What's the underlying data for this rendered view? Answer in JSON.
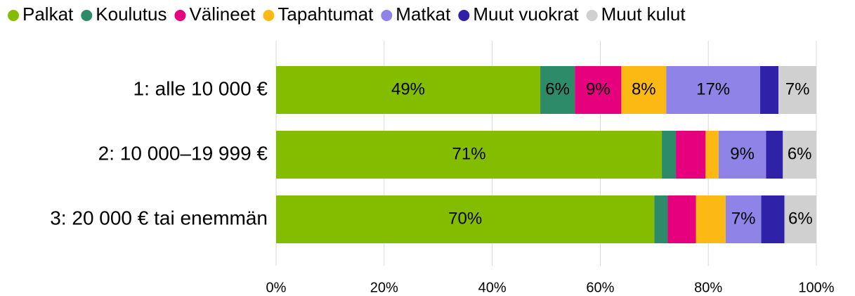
{
  "chart_data": {
    "type": "stacked_barh",
    "categories": [
      "1: alle 10 000 €",
      "2: 10 000–19 999 €",
      "3: 20 000 € tai enemmän"
    ],
    "series": [
      {
        "name": "Palkat",
        "color": "#84bd00",
        "values": [
          48.9,
          71.4,
          70.0
        ],
        "value_labels": [
          "49%",
          "71%",
          "70%"
        ]
      },
      {
        "name": "Koulutus",
        "color": "#2e8b6a",
        "values": [
          6.4,
          2.6,
          2.5
        ],
        "value_labels": [
          "6%",
          null,
          null
        ]
      },
      {
        "name": "Välineet",
        "color": "#e6007e",
        "values": [
          8.6,
          5.5,
          5.2
        ],
        "value_labels": [
          "9%",
          null,
          null
        ]
      },
      {
        "name": "Tapahtumat",
        "color": "#fdb913",
        "values": [
          8.3,
          2.4,
          5.5
        ],
        "value_labels": [
          "8%",
          null,
          null
        ]
      },
      {
        "name": "Matkat",
        "color": "#8f83e8",
        "values": [
          17.4,
          8.8,
          6.6
        ],
        "value_labels": [
          "17%",
          "9%",
          "7%"
        ]
      },
      {
        "name": "Muut vuokrat",
        "color": "#3022a8",
        "values": [
          3.4,
          3.1,
          4.3
        ],
        "value_labels": [
          null,
          null,
          null
        ]
      },
      {
        "name": "Muut kulut",
        "color": "#d0d0d0",
        "values": [
          7.0,
          6.2,
          5.9
        ],
        "value_labels": [
          "7%",
          "6%",
          "6%"
        ]
      }
    ],
    "xlim": [
      0,
      100
    ],
    "xticks": [
      {
        "value": 0,
        "label": "0%"
      },
      {
        "value": 20,
        "label": "20%"
      },
      {
        "value": 40,
        "label": "40%"
      },
      {
        "value": 60,
        "label": "60%"
      },
      {
        "value": 80,
        "label": "80%"
      },
      {
        "value": 100,
        "label": "100%"
      }
    ],
    "grid": true,
    "legend": "top"
  }
}
